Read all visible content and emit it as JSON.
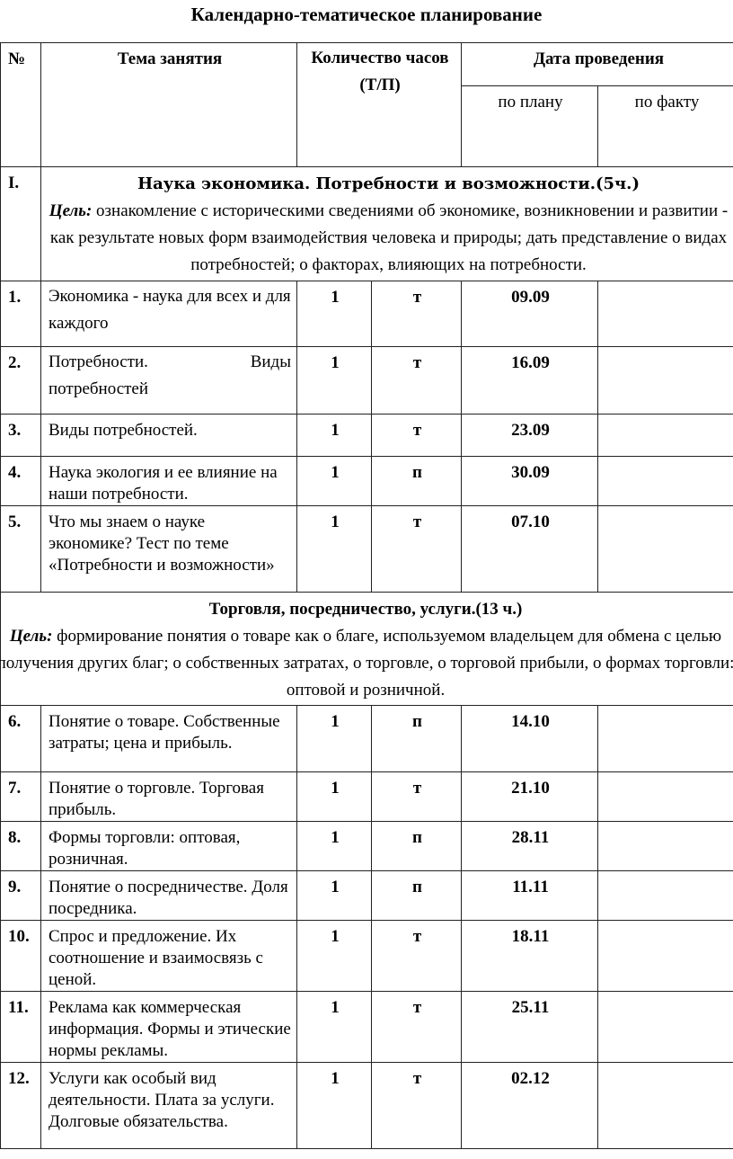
{
  "title": "Календарно-тематическое планирование",
  "header": {
    "num": "№",
    "topic": "Тема занятия",
    "hours": "Количество часов (Т/П)",
    "date": "Дата проведения",
    "plan": "по плану",
    "fact": "по факту"
  },
  "sections": [
    {
      "num": "I.",
      "heading": "Наука экономика. Потребности и возможности.(5ч.)",
      "goal_label": "Цель:",
      "goal_text": " ознакомление с историческими сведениями об экономике, возникновении и развитии - как результате новых форм взаимодействия человека и природы; дать представление о видах потребностей; о факторах, влияющих на потребности."
    },
    {
      "num": "",
      "heading": "Торговля, посредничество, услуги.(13 ч.)",
      "goal_label": "Цель:",
      "goal_text": " формирование понятия о товаре как о благе, используемом владельцем для обмена с целью получения других благ; о собственных затратах, о торговле, о торговой прибыли, о формах торговли: оптовой и розничной."
    }
  ],
  "rows": [
    {
      "num": "1.",
      "topic": "Экономика - наука для всех и для каждого",
      "hours": "1",
      "type": "т",
      "plan": "09.09",
      "fact": ""
    },
    {
      "num": "2.",
      "topic": "Потребности. Виды потребностей",
      "hours": "1",
      "type": "т",
      "plan": "16.09",
      "fact": ""
    },
    {
      "num": "3.",
      "topic": "Виды потребностей.",
      "hours": "1",
      "type": "т",
      "plan": "23.09",
      "fact": ""
    },
    {
      "num": "4.",
      "topic": "Наука экология и ее влияние на наши потребности.",
      "hours": "1",
      "type": "п",
      "plan": "30.09",
      "fact": ""
    },
    {
      "num": "5.",
      "topic": "Что мы знаем о науке экономике? Тест по теме «Потребности и возможности»",
      "hours": "1",
      "type": "т",
      "plan": "07.10",
      "fact": ""
    },
    {
      "num": "6.",
      "topic": "Понятие о товаре. Собственные затраты; цена и прибыль.",
      "hours": "1",
      "type": "п",
      "plan": "14.10",
      "fact": ""
    },
    {
      "num": "7.",
      "topic": "Понятие о торговле. Торговая прибыль.",
      "hours": "1",
      "type": "т",
      "plan": "21.10",
      "fact": ""
    },
    {
      "num": "8.",
      "topic": "Формы торговли: оптовая, розничная.",
      "hours": "1",
      "type": "п",
      "plan": "28.11",
      "fact": ""
    },
    {
      "num": "9.",
      "topic": "Понятие о посредничестве. Доля посредника.",
      "hours": "1",
      "type": "п",
      "plan": "11.11",
      "fact": ""
    },
    {
      "num": "10.",
      "topic": "Спрос и предложение. Их соотношение и взаимосвязь с ценой.",
      "hours": "1",
      "type": "т",
      "plan": "18.11",
      "fact": ""
    },
    {
      "num": "11.",
      "topic": "Реклама как коммерческая информация. Формы и этические нормы рекламы.",
      "hours": "1",
      "type": "т",
      "plan": "25.11",
      "fact": ""
    },
    {
      "num": "12.",
      "topic": "Услуги как особый вид деятельности. Плата за услуги. Долговые обязательства.",
      "hours": "1",
      "type": "т",
      "plan": "02.12",
      "fact": ""
    }
  ]
}
